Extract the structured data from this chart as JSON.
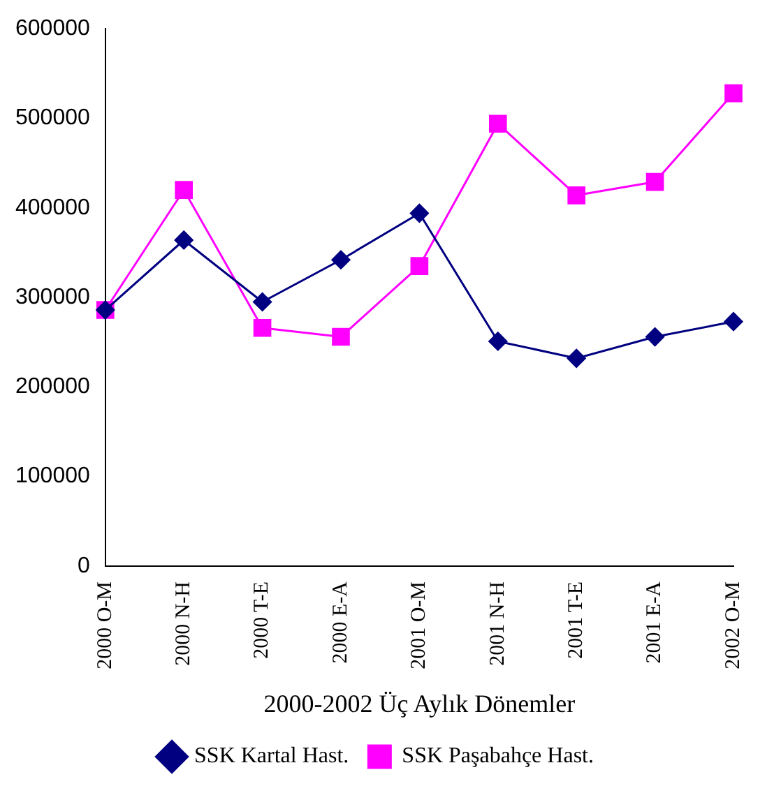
{
  "chart_data": {
    "type": "line",
    "xlabel": "2000-2002 Üç Aylık Dönemler",
    "categories": [
      "2000 O-M",
      "2000 N-H",
      "2000 T-E",
      "2000 E-A",
      "2001 O-M",
      "2001 N-H",
      "2001 T-E",
      "2001 E-A",
      "2002 O-M"
    ],
    "series": [
      {
        "name": "SSK Kartal Hast.",
        "color": "#000080",
        "marker": "diamond",
        "values": [
          286000,
          364000,
          295000,
          342000,
          394000,
          251000,
          232000,
          256000,
          273000
        ]
      },
      {
        "name": "SSK Paşabahçe Hast.",
        "color": "#ff00ff",
        "marker": "square",
        "values": [
          286000,
          420000,
          266000,
          256000,
          335000,
          494000,
          414000,
          429000,
          528000
        ]
      }
    ],
    "ylim": [
      0,
      600000
    ],
    "yticks": [
      0,
      100000,
      200000,
      300000,
      400000,
      500000,
      600000
    ],
    "grid": false,
    "legend": "bottom",
    "line_style": "solid"
  }
}
